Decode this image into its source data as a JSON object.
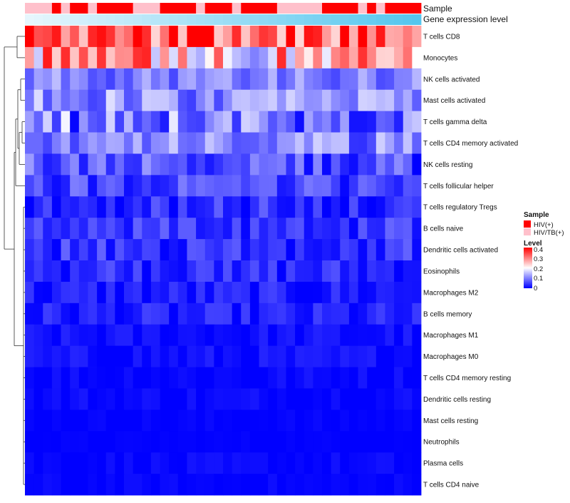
{
  "chart_data": {
    "type": "heatmap",
    "title": "",
    "annotations": {
      "sample_label": "Sample",
      "expression_label": "Gene expression level"
    },
    "rows": [
      "T cells CD8",
      "Monocytes",
      "NK cells activated",
      "Mast cells activated",
      "T cells gamma delta",
      "T cells CD4 memory activated",
      "NK cells resting",
      "T cells follicular helper",
      "T cells regulatory  Tregs",
      "B cells naive",
      "Dendritic cells activated",
      "Eosinophils",
      "Macrophages M2",
      "B cells memory",
      "Macrophages M1",
      "Macrophages M0",
      "T cells CD4 memory resting",
      "Dendritic cells resting",
      "Mast cells resting",
      "Neutrophils",
      "Plasma cells",
      "T cells CD4 naive"
    ],
    "n_columns": 44,
    "sample_groups": [
      1,
      1,
      1,
      0,
      1,
      0,
      0,
      1,
      0,
      0,
      0,
      0,
      1,
      1,
      1,
      0,
      0,
      0,
      0,
      1,
      0,
      0,
      0,
      1,
      0,
      0,
      0,
      0,
      1,
      1,
      1,
      1,
      1,
      0,
      0,
      0,
      0,
      1,
      0,
      1,
      0,
      0,
      0,
      0
    ],
    "value_range": [
      0,
      0.4
    ],
    "row_means": [
      0.33,
      0.24,
      0.1,
      0.11,
      0.1,
      0.1,
      0.06,
      0.05,
      0.03,
      0.04,
      0.04,
      0.03,
      0.02,
      0.02,
      0.01,
      0.01,
      0.005,
      0.005,
      0.002,
      0.001,
      0.003,
      0.002
    ],
    "row_spread": [
      0.07,
      0.09,
      0.03,
      0.04,
      0.06,
      0.04,
      0.04,
      0.03,
      0.03,
      0.025,
      0.025,
      0.025,
      0.02,
      0.02,
      0.012,
      0.012,
      0.01,
      0.01,
      0.004,
      0.002,
      0.008,
      0.006
    ],
    "legend": {
      "sample_title": "Sample",
      "sample_items": [
        {
          "label": "HIV(+)",
          "color": "#ff0000"
        },
        {
          "label": "HIV/TB(+)",
          "color": "#ffc0cb"
        }
      ],
      "level_title": "Level",
      "level_ticks": [
        "0.4",
        "0.3",
        "0.2",
        "0.1",
        "0"
      ],
      "placement": "right"
    },
    "colors": {
      "low": "#0000ff",
      "mid": "#ffffff",
      "high": "#ff0000",
      "expression_start": "#e6f6fd",
      "expression_end": "#55c6ee",
      "sample_hiv": "#ff0000",
      "sample_hivtb": "#ffc0cb"
    }
  }
}
